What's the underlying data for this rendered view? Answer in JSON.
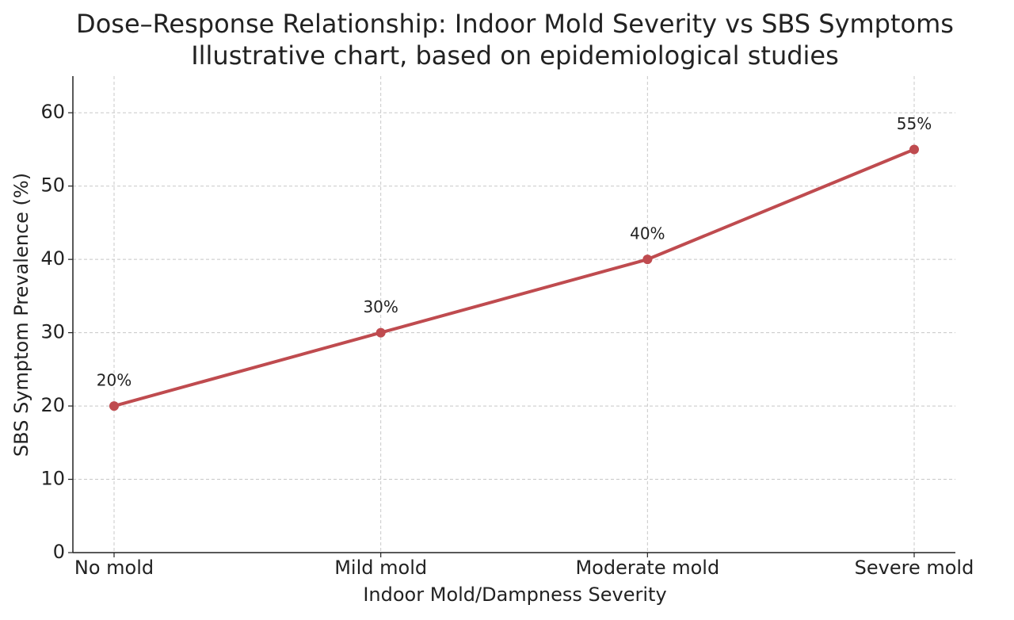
{
  "chart_data": {
    "type": "line",
    "title": "Dose–Response Relationship: Indoor Mold Severity vs SBS Symptoms",
    "subtitle": "Illustrative chart, based on epidemiological studies",
    "x_label": "Indoor Mold/Dampness Severity",
    "y_label": "SBS Symptom Prevalence (%)",
    "categories": [
      "No mold",
      "Mild mold",
      "Moderate mold",
      "Severe mold"
    ],
    "series": [
      {
        "name": "SBS Symptom Prevalence",
        "color": "#bf4b4f",
        "values": [
          20,
          30,
          40,
          55
        ],
        "value_labels": [
          "20%",
          "30%",
          "40%",
          "55%"
        ]
      }
    ],
    "ylim": [
      0,
      65
    ],
    "yticks": [
      0,
      10,
      20,
      30,
      40,
      50,
      60
    ],
    "grid": true
  }
}
